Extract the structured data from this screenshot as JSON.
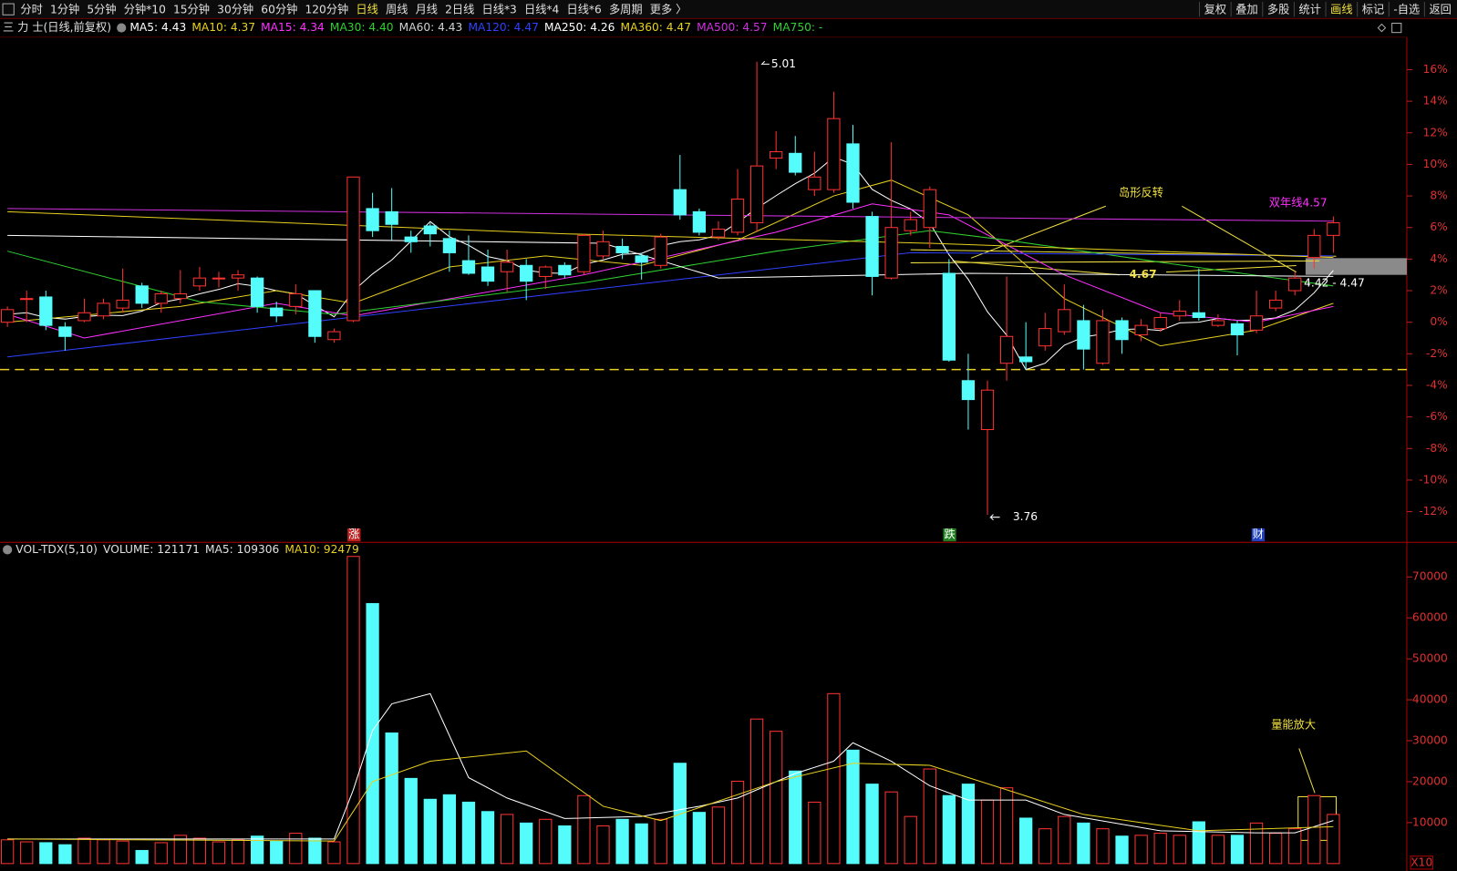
{
  "toolbar": {
    "periods": [
      "分时",
      "1分钟",
      "5分钟",
      "分钟*10",
      "15分钟",
      "30分钟",
      "60分钟",
      "120分钟",
      "日线",
      "周线",
      "月线",
      "2日线",
      "日线*3",
      "日线*4",
      "日线*6",
      "多周期",
      "更多 〉"
    ],
    "active_period": "日线",
    "tools": [
      "复权",
      "叠加",
      "多股",
      "统计",
      "画线",
      "标记",
      "-自选",
      "返回"
    ],
    "active_tool": "画线"
  },
  "stock_label": "三 力 士(日线,前复权)",
  "ma_legend": [
    {
      "text": "MA5: 4.43",
      "color": "#ffffff"
    },
    {
      "text": "MA10: 4.37",
      "color": "#e8d020"
    },
    {
      "text": "MA15: 4.34",
      "color": "#ff30ff"
    },
    {
      "text": "MA30: 4.40",
      "color": "#30d030"
    },
    {
      "text": "MA60: 4.43",
      "color": "#d0d0d0"
    },
    {
      "text": "MA120: 4.47",
      "color": "#3040ff"
    },
    {
      "text": "MA250: 4.26",
      "color": "#ffffff"
    },
    {
      "text": "MA360: 4.47",
      "color": "#e8d020"
    },
    {
      "text": "MA500: 4.57",
      "color": "#d030e0"
    },
    {
      "text": "MA750: -",
      "color": "#30d030"
    }
  ],
  "vol_legend": [
    {
      "text": "VOL-TDX(5,10)",
      "color": "#e0e0e0"
    },
    {
      "text": "VOLUME: 121171",
      "color": "#e0e0e0"
    },
    {
      "text": "MA5: 109306",
      "color": "#e0e0e0"
    },
    {
      "text": "MA10: 92479",
      "color": "#e8d020"
    }
  ],
  "event_markers": [
    {
      "text": "涨",
      "color": "#c02020"
    },
    {
      "text": "跌",
      "color": "#208020"
    },
    {
      "text": "财",
      "color": "#2040c0"
    }
  ],
  "chart_data": [
    {
      "type": "candlestick",
      "up_color": "#ff3232",
      "down_color": "#54fcfc",
      "open": [
        0.0,
        1.5,
        1.6,
        -0.3,
        0.1,
        0.4,
        0.9,
        2.3,
        1.2,
        1.5,
        2.3,
        2.8,
        2.8,
        2.8,
        0.9,
        1.0,
        2.0,
        -1.1,
        0.1,
        7.2,
        7.0,
        5.4,
        6.1,
        5.3,
        3.9,
        3.5,
        3.2,
        3.6,
        2.9,
        3.6,
        3.2,
        4.2,
        4.8,
        4.2,
        3.6,
        8.4,
        7.0,
        5.4,
        5.7,
        6.3,
        10.4,
        10.7,
        8.4,
        8.4,
        11.3,
        6.7,
        2.8,
        5.8,
        6.0,
        3.1,
        -3.7,
        -6.8,
        -2.6,
        -2.2,
        -1.5,
        -0.6,
        0.1,
        -2.6,
        0.1,
        -0.8,
        -0.4,
        0.4,
        0.6,
        -0.2,
        -0.1,
        -0.5,
        0.9,
        2.0,
        4.1,
        5.5
      ],
      "close": [
        0.8,
        1.5,
        -0.2,
        -0.9,
        0.6,
        1.2,
        1.4,
        1.2,
        1.8,
        1.8,
        2.8,
        2.8,
        3.0,
        1.0,
        0.4,
        1.8,
        -0.9,
        -0.6,
        9.2,
        5.8,
        6.2,
        5.1,
        5.6,
        4.4,
        3.1,
        2.6,
        3.8,
        2.6,
        3.5,
        3.0,
        5.5,
        5.1,
        4.4,
        3.8,
        5.4,
        6.8,
        5.7,
        5.9,
        7.8,
        9.9,
        10.8,
        9.5,
        9.2,
        12.9,
        7.6,
        2.9,
        6.0,
        6.5,
        8.4,
        -2.4,
        -4.9,
        -4.3,
        -0.9,
        -2.5,
        -0.4,
        0.8,
        -1.7,
        0.1,
        -1.1,
        -0.2,
        0.3,
        0.7,
        0.3,
        0.1,
        -0.8,
        0.4,
        1.4,
        2.8,
        5.5,
        6.3
      ],
      "high": [
        1.0,
        2.0,
        2.0,
        0.0,
        1.5,
        1.5,
        3.4,
        2.5,
        2.0,
        3.3,
        3.5,
        3.2,
        3.3,
        2.9,
        1.3,
        2.4,
        2.0,
        -0.4,
        9.2,
        8.2,
        8.5,
        5.8,
        6.3,
        5.8,
        5.5,
        4.6,
        4.6,
        4.0,
        3.6,
        3.8,
        5.6,
        5.8,
        5.3,
        4.4,
        5.6,
        10.6,
        7.2,
        6.4,
        9.7,
        16.5,
        12.1,
        11.8,
        10.8,
        14.6,
        12.5,
        7.0,
        11.4,
        7.0,
        8.6,
        4.0,
        -2.0,
        -3.7,
        2.9,
        0.0,
        0.6,
        2.4,
        1.1,
        0.8,
        0.3,
        0.2,
        0.6,
        1.4,
        3.4,
        0.5,
        0.1,
        2.0,
        2.0,
        3.2,
        5.9,
        6.7
      ],
      "low": [
        -0.3,
        0.0,
        -0.5,
        -1.8,
        0.0,
        0.2,
        0.6,
        0.9,
        0.6,
        1.2,
        2.0,
        2.2,
        2.0,
        0.6,
        0.0,
        0.5,
        -1.3,
        -1.3,
        0.0,
        5.4,
        5.2,
        4.4,
        4.8,
        3.2,
        3.0,
        2.3,
        1.9,
        1.4,
        2.1,
        2.8,
        3.0,
        4.0,
        4.0,
        2.7,
        3.4,
        6.5,
        5.5,
        5.2,
        5.5,
        5.7,
        9.7,
        9.3,
        8.0,
        8.2,
        7.2,
        1.7,
        2.7,
        5.5,
        4.7,
        -2.5,
        -6.8,
        -12.2,
        -3.7,
        -3.0,
        -1.8,
        -0.8,
        -3.0,
        -2.7,
        -2.0,
        -1.2,
        -0.6,
        0.1,
        0.1,
        -0.3,
        -2.1,
        -0.7,
        0.7,
        1.7,
        3.4,
        4.4
      ],
      "lines": [
        {
          "name": "MA5",
          "color": "#ffffff",
          "values": [
            0.5,
            0.6,
            0.3,
            0.2,
            0.36,
            0.44,
            0.42,
            0.7,
            1.24,
            1.48,
            1.8,
            2.08,
            2.44,
            2.28,
            2.0,
            1.8,
            1.06,
            0.34,
            1.98,
            3.06,
            3.94,
            5.14,
            6.38,
            5.42,
            4.88,
            4.16,
            3.9,
            3.3,
            3.12,
            3.1,
            3.68,
            3.94,
            4.3,
            4.36,
            4.84,
            5.1,
            5.22,
            5.52,
            6.32,
            7.22,
            8.02,
            8.78,
            9.44,
            10.46,
            10.0,
            8.42,
            7.72,
            7.18,
            6.28,
            4.28,
            2.72,
            0.66,
            -0.82,
            -3.0,
            -2.6,
            -1.46,
            -0.94,
            -0.74,
            -0.46,
            -0.42,
            -0.52,
            -0.04,
            0.0,
            0.24,
            0.12,
            0.14,
            0.28,
            0.78,
            1.86,
            3.28
          ]
        },
        {
          "name": "MA10",
          "color": "#e8d020",
          "x": [
            0,
            9,
            14,
            18,
            23,
            28,
            33,
            38,
            43,
            46,
            50,
            55,
            60,
            65,
            69
          ],
          "values": [
            0.0,
            1.0,
            2.0,
            1.2,
            3.5,
            4.2,
            3.6,
            5.2,
            8.0,
            9.0,
            6.8,
            1.5,
            -1.5,
            -0.5,
            1.2
          ]
        },
        {
          "name": "MA15",
          "color": "#ff30ff",
          "x": [
            0,
            4,
            14,
            18,
            30,
            40,
            45,
            49,
            55,
            60,
            65,
            69
          ],
          "values": [
            0.5,
            -1.0,
            1.2,
            0.4,
            3.0,
            5.7,
            7.5,
            6.8,
            3.0,
            0.6,
            0.0,
            1.0
          ]
        },
        {
          "name": "MA30",
          "color": "#30d030",
          "x": [
            0,
            10,
            17,
            30,
            40,
            48,
            52,
            60,
            69
          ],
          "values": [
            4.5,
            1.3,
            0.5,
            2.5,
            4.5,
            5.8,
            5.2,
            3.8,
            2.3
          ]
        },
        {
          "name": "MA120",
          "color": "#3040ff",
          "x": [
            0,
            47,
            69
          ],
          "values": [
            -2.2,
            4.4,
            4.2
          ]
        },
        {
          "name": "MA250",
          "color": "#ffffff",
          "x": [
            0,
            31,
            37,
            50,
            69
          ],
          "values": [
            5.5,
            5.0,
            2.8,
            3.1,
            2.9
          ]
        },
        {
          "name": "MA360",
          "color": "#e8d020",
          "x": [
            0,
            29,
            48,
            69
          ],
          "values": [
            7.0,
            5.6,
            5.0,
            4.1
          ]
        },
        {
          "name": "MA500",
          "color": "#d030e0",
          "x": [
            0,
            69
          ],
          "values": [
            7.2,
            6.4
          ]
        }
      ],
      "reference_line": -3.0,
      "annotations": [
        {
          "text": "5.01",
          "color": "#ffffff"
        },
        {
          "text": "3.76",
          "color": "#ffffff"
        },
        {
          "text": "岛形反转",
          "color": "#f0e040"
        },
        {
          "text": "双年线4.57",
          "color": "#ff30ff"
        },
        {
          "text": "4.67",
          "color": "#f0e040"
        },
        {
          "text": "4.42 - 4.47",
          "color": "#ffffff"
        }
      ],
      "ylim": [
        -13.94,
        18.06
      ],
      "yticks": [
        {
          "value": 16,
          "label": "16%"
        },
        {
          "value": 14,
          "label": "14%"
        },
        {
          "value": 12,
          "label": "12%"
        },
        {
          "value": 10,
          "label": "10%"
        },
        {
          "value": 8,
          "label": "8%"
        },
        {
          "value": 6,
          "label": "6%"
        },
        {
          "value": 4,
          "label": "4%"
        },
        {
          "value": 2,
          "label": "2%"
        },
        {
          "value": 0,
          "label": "0%"
        },
        {
          "value": -2,
          "label": "-2%"
        },
        {
          "value": -4,
          "label": "-4%"
        },
        {
          "value": -6,
          "label": "-6%"
        },
        {
          "value": -8,
          "label": "-8%"
        },
        {
          "value": -10,
          "label": "-10%"
        },
        {
          "value": -12,
          "label": "-12%"
        }
      ],
      "grid": false
    },
    {
      "type": "bar",
      "values": [
        5800,
        5300,
        5100,
        4600,
        6200,
        5800,
        5500,
        3200,
        5100,
        6900,
        6200,
        5300,
        5800,
        6700,
        5500,
        7400,
        6200,
        5300,
        75000,
        63500,
        31900,
        20800,
        15700,
        16800,
        15000,
        12700,
        12000,
        9900,
        10800,
        9200,
        16600,
        9200,
        10800,
        9700,
        10800,
        24500,
        12500,
        13800,
        20100,
        35300,
        32300,
        22600,
        15000,
        41500,
        27700,
        19400,
        17500,
        11500,
        23100,
        16600,
        19400,
        15500,
        18500,
        11100,
        8500,
        11500,
        9900,
        8500,
        6700,
        6900,
        7400,
        6900,
        10200,
        6900,
        6900,
        9900,
        7400,
        8500,
        16600,
        12000
      ],
      "lines": [
        {
          "name": "MA5",
          "color": "#ffffff",
          "x": [
            0,
            17,
            18,
            19,
            20,
            22,
            24,
            26,
            29,
            33,
            36,
            38,
            41,
            43,
            44,
            46,
            48,
            50,
            53,
            55,
            60,
            65,
            67,
            69
          ],
          "values": [
            6000,
            6000,
            18000,
            32500,
            39000,
            41500,
            21000,
            16000,
            11000,
            11500,
            14000,
            16000,
            22000,
            25000,
            29500,
            25000,
            19000,
            15500,
            15500,
            12000,
            8000,
            7500,
            7500,
            10500
          ]
        },
        {
          "name": "MA10",
          "color": "#e8d020",
          "x": [
            0,
            17,
            19,
            22,
            27,
            31,
            34,
            40,
            44,
            48,
            52,
            56,
            62,
            69
          ],
          "values": [
            6000,
            5500,
            20000,
            25000,
            27500,
            14000,
            10500,
            20000,
            24500,
            24000,
            18000,
            12000,
            8000,
            9000
          ]
        }
      ],
      "annotations": [
        {
          "text": "量能放大",
          "color": "#f0e040"
        }
      ],
      "unit_label": "X10",
      "ylim": [
        0,
        78460
      ],
      "yticks": [
        70000,
        60000,
        50000,
        40000,
        30000,
        20000,
        10000
      ],
      "grid": false
    }
  ]
}
